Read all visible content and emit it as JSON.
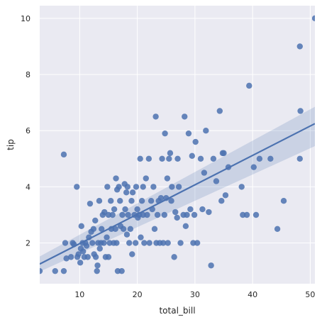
{
  "chart_data": {
    "type": "scatter",
    "title": "",
    "xlabel": "total_bill",
    "ylabel": "tip",
    "xlim": [
      3.07,
      50.81
    ],
    "ylim": [
      0.55,
      10.45
    ],
    "xticks": [
      10,
      20,
      30,
      40,
      50
    ],
    "yticks": [
      2,
      4,
      6,
      8,
      10
    ],
    "grid": true,
    "colors": {
      "background": "#EAEAF2",
      "grid": "#FFFFFF",
      "points": "#4C72B0",
      "line": "#4C72B0",
      "band": "#4C72B0"
    },
    "regression": {
      "x": [
        3.07,
        50.81
      ],
      "y": [
        1.25,
        6.25
      ],
      "ci_lower": [
        0.98,
        5.45
      ],
      "ci_upper": [
        1.52,
        6.85
      ]
    },
    "points": [
      [
        3.07,
        1.0
      ],
      [
        5.75,
        1.0
      ],
      [
        7.25,
        1.0
      ],
      [
        7.25,
        5.15
      ],
      [
        7.5,
        2.0
      ],
      [
        7.7,
        1.45
      ],
      [
        8.5,
        1.5
      ],
      [
        8.8,
        2.0
      ],
      [
        9.0,
        1.95
      ],
      [
        9.5,
        4.0
      ],
      [
        9.6,
        1.5
      ],
      [
        9.8,
        1.6
      ],
      [
        10.1,
        1.3
      ],
      [
        10.2,
        1.8
      ],
      [
        10.3,
        2.6
      ],
      [
        10.5,
        2.0
      ],
      [
        10.6,
        1.7
      ],
      [
        10.8,
        1.5
      ],
      [
        11.0,
        2.0
      ],
      [
        11.2,
        1.9
      ],
      [
        11.4,
        1.5
      ],
      [
        11.6,
        2.2
      ],
      [
        11.8,
        3.4
      ],
      [
        12.0,
        2.4
      ],
      [
        12.2,
        2.0
      ],
      [
        12.4,
        2.5
      ],
      [
        12.5,
        1.6
      ],
      [
        12.7,
        2.8
      ],
      [
        12.8,
        1.5
      ],
      [
        13.0,
        1.0
      ],
      [
        13.1,
        1.2
      ],
      [
        13.2,
        2.0
      ],
      [
        13.4,
        3.5
      ],
      [
        13.5,
        1.8
      ],
      [
        13.7,
        2.0
      ],
      [
        13.8,
        2.5
      ],
      [
        14.0,
        3.0
      ],
      [
        14.2,
        2.0
      ],
      [
        14.3,
        3.1
      ],
      [
        14.5,
        1.5
      ],
      [
        14.7,
        2.2
      ],
      [
        14.8,
        4.0
      ],
      [
        15.0,
        3.0
      ],
      [
        15.0,
        1.5
      ],
      [
        15.2,
        2.0
      ],
      [
        15.4,
        3.5
      ],
      [
        15.5,
        2.5
      ],
      [
        15.7,
        3.0
      ],
      [
        15.9,
        2.0
      ],
      [
        16.0,
        3.2
      ],
      [
        16.2,
        2.5
      ],
      [
        16.3,
        4.3
      ],
      [
        16.4,
        2.0
      ],
      [
        16.5,
        3.9
      ],
      [
        16.6,
        1.0
      ],
      [
        16.8,
        4.0
      ],
      [
        17.0,
        3.5
      ],
      [
        17.1,
        2.6
      ],
      [
        17.3,
        1.0
      ],
      [
        17.4,
        3.0
      ],
      [
        17.6,
        2.5
      ],
      [
        17.8,
        4.1
      ],
      [
        17.9,
        3.2
      ],
      [
        18.1,
        3.8
      ],
      [
        18.2,
        2.3
      ],
      [
        18.3,
        4.0
      ],
      [
        18.4,
        3.0
      ],
      [
        18.6,
        2.0
      ],
      [
        18.8,
        2.5
      ],
      [
        19.0,
        3.5
      ],
      [
        19.1,
        1.6
      ],
      [
        19.2,
        3.8
      ],
      [
        19.5,
        3.0
      ],
      [
        19.7,
        2.0
      ],
      [
        19.8,
        4.0
      ],
      [
        20.0,
        3.2
      ],
      [
        20.1,
        2.9
      ],
      [
        20.3,
        3.0
      ],
      [
        20.5,
        5.0
      ],
      [
        20.6,
        2.2
      ],
      [
        20.8,
        3.5
      ],
      [
        21.0,
        4.0
      ],
      [
        21.0,
        3.0
      ],
      [
        21.2,
        2.0
      ],
      [
        21.5,
        4.3
      ],
      [
        21.7,
        3.0
      ],
      [
        22.0,
        5.0
      ],
      [
        22.1,
        2.0
      ],
      [
        22.4,
        3.5
      ],
      [
        22.6,
        3.2
      ],
      [
        22.8,
        4.0
      ],
      [
        23.0,
        2.5
      ],
      [
        23.2,
        6.5
      ],
      [
        23.3,
        2.0
      ],
      [
        23.5,
        3.0
      ],
      [
        23.7,
        3.5
      ],
      [
        23.9,
        2.0
      ],
      [
        24.1,
        3.6
      ],
      [
        24.3,
        5.0
      ],
      [
        24.5,
        2.0
      ],
      [
        24.7,
        3.0
      ],
      [
        24.8,
        5.9
      ],
      [
        25.0,
        3.6
      ],
      [
        25.2,
        4.3
      ],
      [
        25.3,
        2.0
      ],
      [
        25.5,
        5.0
      ],
      [
        25.7,
        5.2
      ],
      [
        25.9,
        3.5
      ],
      [
        26.0,
        4.0
      ],
      [
        26.4,
        1.5
      ],
      [
        26.6,
        3.1
      ],
      [
        26.9,
        2.9
      ],
      [
        27.0,
        5.0
      ],
      [
        27.2,
        4.0
      ],
      [
        27.5,
        2.0
      ],
      [
        28.0,
        3.0
      ],
      [
        28.2,
        6.5
      ],
      [
        28.4,
        2.6
      ],
      [
        28.6,
        3.0
      ],
      [
        28.9,
        5.9
      ],
      [
        29.2,
        3.2
      ],
      [
        29.5,
        5.1
      ],
      [
        29.7,
        2.0
      ],
      [
        29.9,
        3.0
      ],
      [
        30.1,
        5.6
      ],
      [
        30.4,
        2.0
      ],
      [
        31.0,
        5.0
      ],
      [
        31.3,
        3.2
      ],
      [
        31.6,
        4.5
      ],
      [
        31.9,
        6.0
      ],
      [
        32.4,
        3.1
      ],
      [
        32.8,
        1.2
      ],
      [
        33.2,
        5.0
      ],
      [
        33.7,
        4.2
      ],
      [
        34.3,
        6.7
      ],
      [
        34.6,
        3.5
      ],
      [
        34.8,
        5.2
      ],
      [
        35.0,
        5.2
      ],
      [
        35.3,
        3.7
      ],
      [
        35.8,
        4.7
      ],
      [
        38.1,
        4.0
      ],
      [
        38.3,
        3.0
      ],
      [
        39.0,
        3.0
      ],
      [
        39.4,
        7.6
      ],
      [
        40.2,
        4.7
      ],
      [
        40.6,
        3.0
      ],
      [
        41.2,
        5.0
      ],
      [
        43.1,
        5.0
      ],
      [
        44.3,
        2.5
      ],
      [
        45.4,
        3.5
      ],
      [
        48.2,
        9.0
      ],
      [
        48.3,
        6.7
      ],
      [
        48.2,
        5.0
      ],
      [
        50.81,
        10.0
      ]
    ]
  }
}
